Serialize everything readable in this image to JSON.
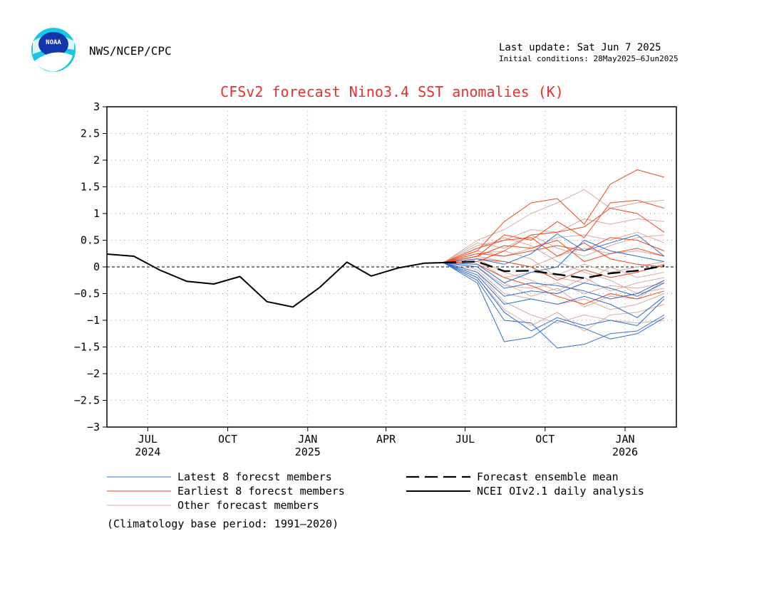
{
  "header": {
    "agency": "NWS/NCEP/CPC",
    "logo_text": "NOAA",
    "last_update": "Last update: Sat Jun 7 2025",
    "initial_conditions": "Initial conditions: 28May2025–6Jun2025"
  },
  "footnote": "(Climatology base period: 1991–2020)",
  "colors": {
    "title": "#e8312b",
    "latest": "#2f6fd1",
    "earliest": "#f0491a",
    "other": "#d9a9a2",
    "mean": "#000000",
    "analysis": "#000000",
    "grid": "#9a9a9a"
  },
  "chart_data": {
    "type": "line",
    "title": "CFSv2 forecast Nino3.4 SST anomalies (K)",
    "ylim": [
      -3,
      3
    ],
    "yticks": [
      3,
      2.5,
      2,
      1.5,
      1,
      0.5,
      0,
      -0.5,
      -1,
      -1.5,
      -2,
      -2.5,
      -3
    ],
    "ytick_labels": [
      "3",
      "2.5",
      "2",
      "1.5",
      "1",
      "0.5",
      "0",
      "−0.5",
      "−1",
      "−1.5",
      "−2",
      "−2.5",
      "−3"
    ],
    "x_domain": [
      "2024-05-15",
      "2026-03-01"
    ],
    "x_ticks": [
      {
        "date": "2024-07-01",
        "label": "JUL",
        "year": "2024"
      },
      {
        "date": "2024-10-01",
        "label": "OCT",
        "year": ""
      },
      {
        "date": "2025-01-01",
        "label": "JAN",
        "year": "2025"
      },
      {
        "date": "2025-04-01",
        "label": "APR",
        "year": ""
      },
      {
        "date": "2025-07-01",
        "label": "JUL",
        "year": ""
      },
      {
        "date": "2025-10-01",
        "label": "OCT",
        "year": ""
      },
      {
        "date": "2026-01-01",
        "label": "JAN",
        "year": "2026"
      }
    ],
    "grid": true,
    "zero_line": true,
    "legend": {
      "position": "bottom",
      "items": [
        {
          "key": "latest",
          "label": "Latest 8 forecst members",
          "style": "solid"
        },
        {
          "key": "earliest",
          "label": "Earliest 8 forecst members",
          "style": "solid"
        },
        {
          "key": "other",
          "label": "Other forecast members",
          "style": "solid"
        },
        {
          "key": "mean",
          "label": "Forecast ensemble mean",
          "style": "dashed"
        },
        {
          "key": "analysis",
          "label": "NCEI OIv2.1 daily analysis",
          "style": "solid"
        }
      ]
    },
    "analysis": {
      "name": "NCEI OIv2.1 daily analysis",
      "x": [
        "2024-05-15",
        "2024-06-15",
        "2024-07-15",
        "2024-08-15",
        "2024-09-15",
        "2024-10-15",
        "2024-11-15",
        "2024-12-15",
        "2025-01-15",
        "2025-02-15",
        "2025-03-15",
        "2025-04-15",
        "2025-05-15",
        "2025-06-06"
      ],
      "y": [
        0.24,
        0.2,
        -0.06,
        -0.27,
        -0.32,
        -0.18,
        -0.65,
        -0.75,
        -0.38,
        0.09,
        -0.17,
        -0.02,
        0.07,
        0.08
      ]
    },
    "forecast_x": [
      "2025-06-06",
      "2025-07-15",
      "2025-08-15",
      "2025-09-15",
      "2025-10-15",
      "2025-11-15",
      "2025-12-15",
      "2026-01-15",
      "2026-02-15"
    ],
    "ensemble_mean": {
      "name": "Forecast ensemble mean",
      "y": [
        0.08,
        0.1,
        -0.08,
        -0.07,
        -0.14,
        -0.21,
        -0.12,
        -0.07,
        0.02
      ]
    },
    "members": [
      {
        "group": "latest",
        "y": [
          0.08,
          -0.3,
          -1.4,
          -1.32,
          -1.0,
          -1.15,
          -1.35,
          -1.25,
          -0.95
        ]
      },
      {
        "group": "latest",
        "y": [
          0.08,
          -0.25,
          -1.0,
          -1.05,
          -1.52,
          -1.45,
          -1.25,
          -1.2,
          -0.9
        ]
      },
      {
        "group": "latest",
        "y": [
          0.08,
          -0.2,
          -0.85,
          -1.2,
          -0.95,
          -1.1,
          -1.0,
          -1.1,
          -0.6
        ]
      },
      {
        "group": "latest",
        "y": [
          0.08,
          -0.15,
          -0.7,
          -0.6,
          -0.7,
          -0.55,
          -0.7,
          -0.95,
          -0.55
        ]
      },
      {
        "group": "latest",
        "y": [
          0.08,
          -0.1,
          -0.55,
          -0.45,
          -0.5,
          -0.3,
          -0.4,
          -0.55,
          -0.3
        ]
      },
      {
        "group": "latest",
        "y": [
          0.08,
          0.0,
          -0.4,
          -0.3,
          -0.35,
          -0.45,
          -0.6,
          -0.5,
          -0.25
        ]
      },
      {
        "group": "latest",
        "y": [
          0.08,
          0.15,
          0.05,
          0.25,
          0.62,
          0.3,
          0.45,
          0.6,
          0.2
        ]
      },
      {
        "group": "latest",
        "y": [
          0.08,
          0.05,
          -0.3,
          -0.1,
          0.0,
          0.5,
          0.3,
          0.2,
          0.1
        ]
      },
      {
        "group": "earliest",
        "y": [
          0.08,
          0.3,
          0.85,
          1.2,
          1.28,
          0.8,
          1.55,
          1.82,
          1.68
        ]
      },
      {
        "group": "earliest",
        "y": [
          0.08,
          0.2,
          0.6,
          0.5,
          0.85,
          0.55,
          1.2,
          1.25,
          1.1
        ]
      },
      {
        "group": "earliest",
        "y": [
          0.08,
          0.1,
          0.3,
          0.6,
          0.65,
          0.75,
          1.1,
          1.0,
          0.65
        ]
      },
      {
        "group": "earliest",
        "y": [
          0.08,
          0.25,
          0.2,
          0.3,
          0.4,
          0.3,
          0.55,
          0.5,
          0.3
        ]
      },
      {
        "group": "earliest",
        "y": [
          0.08,
          0.35,
          0.5,
          0.55,
          0.2,
          0.45,
          0.15,
          0.05,
          0.0
        ]
      },
      {
        "group": "earliest",
        "y": [
          0.08,
          0.05,
          -0.2,
          -0.35,
          -0.55,
          -0.7,
          -0.5,
          -0.6,
          -0.45
        ]
      },
      {
        "group": "earliest",
        "y": [
          0.08,
          0.15,
          0.1,
          0.0,
          -0.25,
          -0.05,
          -0.2,
          -0.1,
          0.05
        ]
      },
      {
        "group": "earliest",
        "y": [
          0.08,
          0.2,
          0.4,
          0.35,
          0.5,
          0.1,
          0.25,
          0.35,
          0.2
        ]
      },
      {
        "group": "other",
        "y": [
          0.08,
          0.5,
          0.7,
          1.0,
          1.2,
          1.45,
          1.1,
          1.2,
          1.25
        ]
      },
      {
        "group": "other",
        "y": [
          0.08,
          0.4,
          0.5,
          0.7,
          0.65,
          0.9,
          0.8,
          0.9,
          0.85
        ]
      },
      {
        "group": "other",
        "y": [
          0.08,
          0.3,
          0.2,
          0.35,
          0.55,
          0.6,
          0.5,
          0.65,
          0.45
        ]
      },
      {
        "group": "other",
        "y": [
          0.08,
          0.2,
          0.1,
          0.0,
          0.2,
          0.35,
          0.25,
          0.3,
          0.2
        ]
      },
      {
        "group": "other",
        "y": [
          0.08,
          0.1,
          -0.2,
          -0.1,
          -0.15,
          0.05,
          -0.1,
          0.0,
          0.1
        ]
      },
      {
        "group": "other",
        "y": [
          0.08,
          0.0,
          -0.35,
          -0.4,
          -0.3,
          -0.5,
          -0.35,
          -0.4,
          -0.3
        ]
      },
      {
        "group": "other",
        "y": [
          0.08,
          -0.05,
          -0.5,
          -0.6,
          -0.7,
          -0.6,
          -0.8,
          -0.7,
          -0.5
        ]
      },
      {
        "group": "other",
        "y": [
          0.08,
          -0.1,
          -0.65,
          -0.9,
          -1.05,
          -0.9,
          -1.0,
          -1.05,
          -1.0
        ]
      },
      {
        "group": "other",
        "y": [
          0.08,
          -0.2,
          -0.8,
          -1.1,
          -0.85,
          -1.2,
          -0.9,
          -0.85,
          -0.7
        ]
      },
      {
        "group": "other",
        "y": [
          0.08,
          0.25,
          0.3,
          0.15,
          -0.2,
          -0.3,
          0.0,
          -0.2,
          -0.1
        ]
      },
      {
        "group": "other",
        "y": [
          0.08,
          0.15,
          -0.1,
          -0.25,
          -0.45,
          -0.2,
          -0.45,
          -0.3,
          -0.2
        ]
      },
      {
        "group": "other",
        "y": [
          0.08,
          0.35,
          0.55,
          0.4,
          0.1,
          -0.1,
          -0.25,
          -0.5,
          -0.4
        ]
      },
      {
        "group": "other",
        "y": [
          0.08,
          0.05,
          -0.3,
          -0.55,
          -0.4,
          -0.75,
          -0.55,
          -0.6,
          -0.25
        ]
      },
      {
        "group": "other",
        "y": [
          0.08,
          0.45,
          0.35,
          0.6,
          0.35,
          0.2,
          0.4,
          0.55,
          0.6
        ]
      }
    ]
  }
}
